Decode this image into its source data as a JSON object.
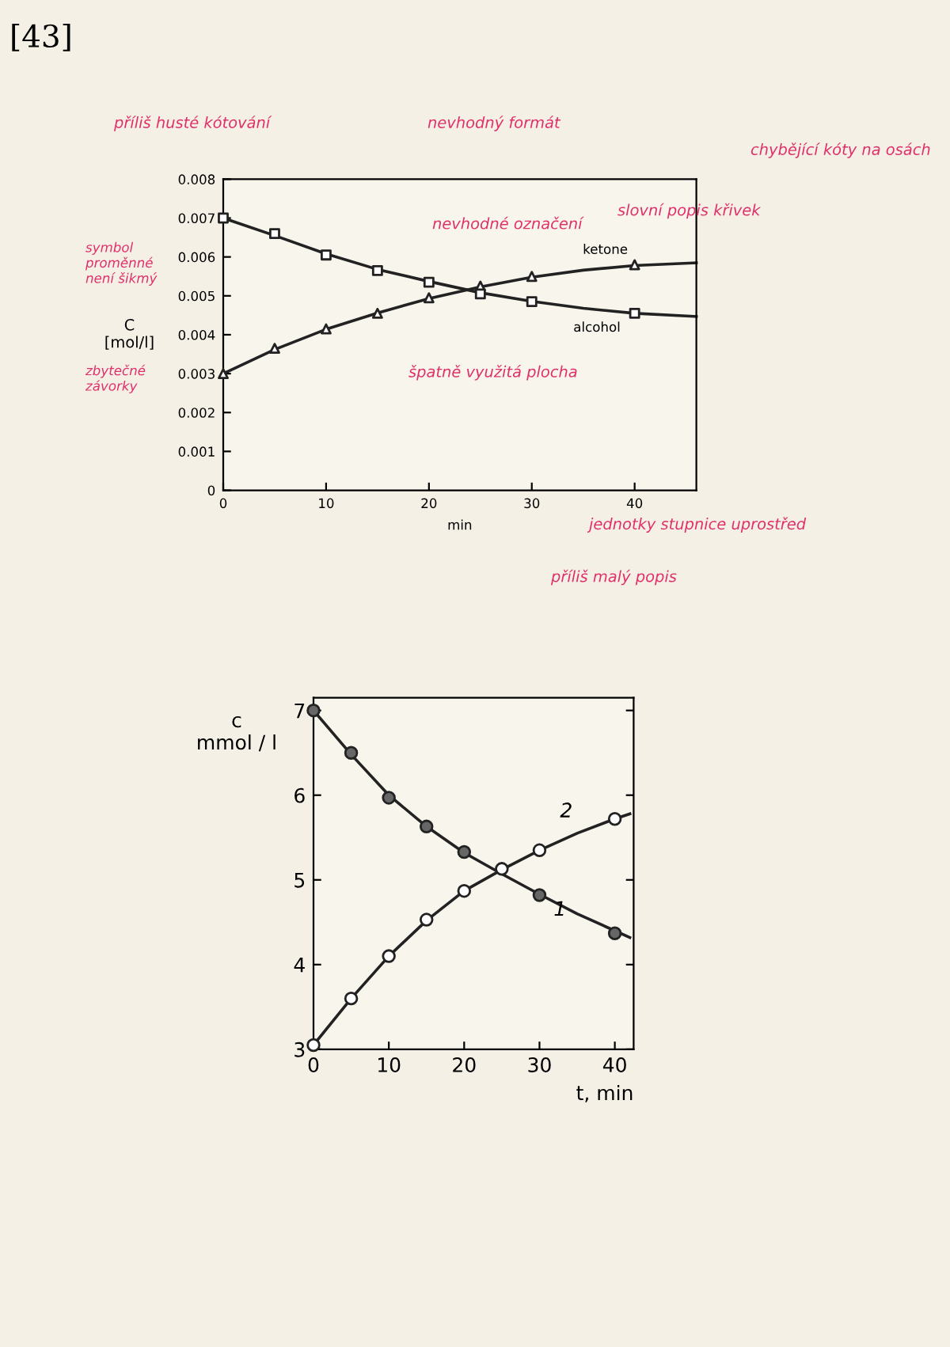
{
  "chart_data": [
    {
      "type": "line",
      "xlabel": "min",
      "ylabel": "C\n[mol/l]",
      "xlim": [
        0,
        46
      ],
      "ylim": [
        0,
        0.008
      ],
      "xticks": [
        0,
        10,
        20,
        30,
        40
      ],
      "yticks": [
        0,
        0.001,
        0.002,
        0.003,
        0.004,
        0.005,
        0.006,
        0.007,
        0.008
      ],
      "grid": false,
      "legend": false,
      "series": [
        {
          "name": "ketone",
          "type": "line",
          "color": "#222222",
          "x": [
            0,
            5,
            10,
            15,
            20,
            25,
            30,
            35,
            40,
            46
          ],
          "values": [
            0.003,
            0.00362,
            0.00414,
            0.00456,
            0.00493,
            0.00523,
            0.00548,
            0.00566,
            0.00578,
            0.00585
          ]
        },
        {
          "name": "alcohol",
          "type": "line",
          "color": "#222222",
          "x": [
            0,
            5,
            10,
            15,
            20,
            25,
            30,
            35,
            40,
            46
          ],
          "values": [
            0.007,
            0.00655,
            0.00608,
            0.00568,
            0.00537,
            0.00508,
            0.00486,
            0.00468,
            0.00455,
            0.00447
          ]
        },
        {
          "type": "scatter",
          "marker": "triangle",
          "color": "#ffffff",
          "x": [
            0,
            5,
            10,
            15,
            20,
            25,
            30,
            40
          ],
          "values": [
            0.003,
            0.00365,
            0.00415,
            0.00455,
            0.00495,
            0.00525,
            0.0055,
            0.0058
          ]
        },
        {
          "type": "scatter",
          "marker": "square",
          "color": "#ffffff",
          "x": [
            0,
            5,
            10,
            15,
            20,
            25,
            30,
            40
          ],
          "values": [
            0.007,
            0.0066,
            0.00605,
            0.00565,
            0.00535,
            0.00505,
            0.00485,
            0.00455
          ]
        }
      ],
      "annotations": [
        "[43]",
        "příliš husté kótování",
        "nevhodný formát",
        "chybějící kóty na osách",
        "nevhodné označení",
        "slovní popis křivek",
        "symbol\nproměnné\nnení šikmý",
        "zbytečné\nzávorky",
        "špatně využitá plocha",
        "jednotky stupnice uprostřed",
        "příliš malý popis"
      ]
    },
    {
      "type": "line",
      "xlabel": "t, min",
      "ylabel": "c\nmmol / l",
      "xlim": [
        0,
        42.5
      ],
      "ylim": [
        3,
        7.15
      ],
      "xticks": [
        0,
        10,
        20,
        30,
        40
      ],
      "yticks": [
        3,
        4,
        5,
        6,
        7
      ],
      "grid": false,
      "legend": false,
      "series": [
        {
          "name": "1",
          "type": "line",
          "color": "#222222",
          "x": [
            0,
            5,
            10,
            15,
            20,
            25,
            30,
            35,
            40,
            42
          ],
          "values": [
            7.0,
            6.48,
            6.0,
            5.63,
            5.32,
            5.07,
            4.83,
            4.6,
            4.4,
            4.32
          ]
        },
        {
          "name": "2",
          "type": "line",
          "color": "#222222",
          "x": [
            0,
            5,
            10,
            15,
            20,
            25,
            30,
            35,
            40,
            42
          ],
          "values": [
            3.05,
            3.6,
            4.1,
            4.52,
            4.87,
            5.12,
            5.35,
            5.55,
            5.72,
            5.78
          ]
        },
        {
          "type": "scatter",
          "marker": "circle",
          "color": "#666666",
          "x": [
            0,
            5,
            10,
            15,
            20,
            30,
            40
          ],
          "values": [
            7.0,
            6.5,
            5.97,
            5.63,
            5.33,
            4.82,
            4.37
          ]
        },
        {
          "type": "scatter",
          "marker": "circle",
          "color": "#ffffff",
          "x": [
            0,
            5,
            10,
            15,
            20,
            25,
            30,
            40
          ],
          "values": [
            3.05,
            3.6,
            4.1,
            4.53,
            4.87,
            5.13,
            5.35,
            5.72
          ]
        }
      ]
    }
  ]
}
